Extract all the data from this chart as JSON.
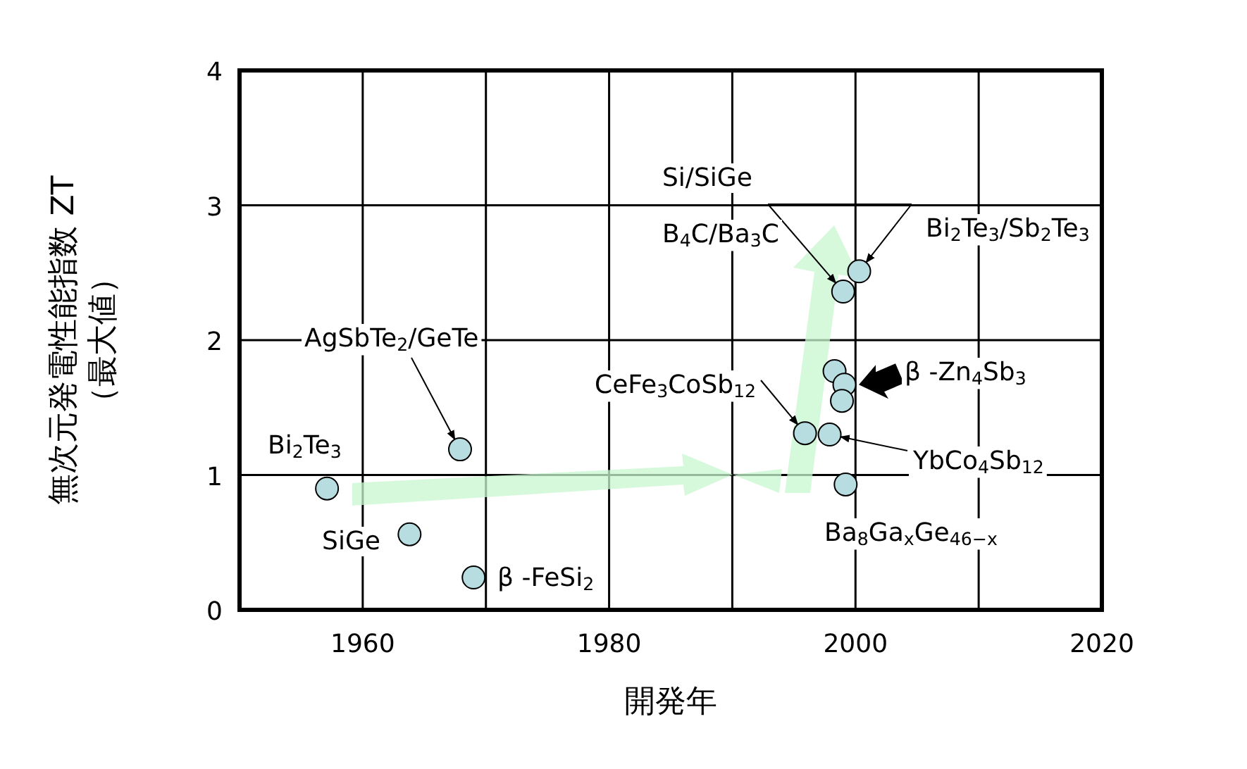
{
  "chart_data": {
    "type": "scatter",
    "xlabel": "開発年",
    "ylabel": "無次元発電性能指数 ZT\n（最大値）",
    "xlim": [
      1950,
      2020
    ],
    "xticks": [
      1960,
      {
        "value": 1970,
        "label": null
      },
      1980,
      {
        "value": 1990,
        "label": null
      },
      2000,
      {
        "value": 2010,
        "label": null
      },
      2020
    ],
    "ylim": [
      0,
      4
    ],
    "yticks": [
      0,
      1,
      2,
      3,
      4
    ],
    "grid": true,
    "marker": "circle",
    "series": [
      {
        "color": "#b7dde0",
        "x": [
          1957.1,
          1963.8,
          1967.9,
          1969,
          1999.0,
          2000.3,
          1998.3,
          1999.1,
          1998.9,
          1995.9,
          1997.9,
          1999.2
        ],
        "values": [
          0.9,
          0.56,
          1.19,
          0.24,
          2.36,
          2.51,
          1.77,
          1.67,
          1.55,
          1.31,
          1.3,
          0.93
        ]
      }
    ],
    "annotations": [
      {
        "text": "Bi$_{2}$Te$_{3}$",
        "x": 1957.1,
        "y": 0.9
      },
      {
        "text": "SiGe",
        "x": 1963.8,
        "y": 0.56
      },
      {
        "text": "AgSbTe$_{2}$/GeTe",
        "x": 1967.9,
        "y": 1.19
      },
      {
        "text": "β -FeSi$_{2}$",
        "x": 1969,
        "y": 0.24
      },
      {
        "text": "Si/SiGe\nB$_{4}$C/Ba$_{3}$C",
        "x": 1999.0,
        "y": 2.36
      },
      {
        "text": "Bi$_{2}$Te$_{3}$/Sb$_{2}$Te$_{3}$",
        "x": 2000.3,
        "y": 2.51
      },
      {
        "text": "β -Zn$_{4}$Sb$_{3}$",
        "x": 1998.9,
        "y": 1.67
      },
      {
        "text": "CeFe$_{3}$CoSb$_{12}$",
        "x": 1995.9,
        "y": 1.31
      },
      {
        "text": "YbCo$_{4}$Sb$_{12}$",
        "x": 1997.9,
        "y": 1.3
      },
      {
        "text": "Ba$_{8}$Ga$_{x}$Ge$_{46−x}$",
        "x": 1999.2,
        "y": 0.93
      }
    ]
  }
}
